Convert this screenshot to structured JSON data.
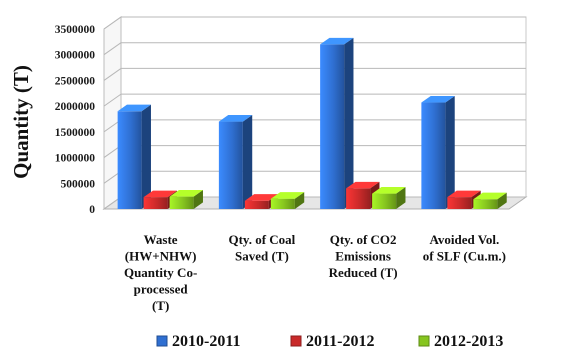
{
  "chart_data": {
    "type": "bar",
    "title": "",
    "xlabel": "",
    "ylabel": "Quantity (T)",
    "ylim": [
      0,
      3500000
    ],
    "yticks": [
      0,
      500000,
      1000000,
      1500000,
      2000000,
      2500000,
      3000000,
      3500000
    ],
    "ytick_labels": [
      "0",
      "500000",
      "1000000",
      "1500000",
      "2000000",
      "2500000",
      "3000000",
      "3500000"
    ],
    "grid": true,
    "legend_position": "bottom",
    "categories": [
      [
        "Waste",
        "(HW+NHW)",
        "Quantity Co-",
        "processed",
        "(T)"
      ],
      [
        "Qty. of Coal",
        "Saved (T)"
      ],
      [
        "Qty. of CO2",
        "Emissions",
        "Reduced (T)"
      ],
      [
        "Avoided Vol.",
        "of SLF (Cu.m.)"
      ]
    ],
    "series": [
      {
        "name": "2010-2011",
        "color": "#2f6fd1",
        "values": [
          1900000,
          1700000,
          3200000,
          2070000
        ]
      },
      {
        "name": "2011-2012",
        "color": "#c92a2a",
        "values": [
          230000,
          160000,
          400000,
          230000
        ]
      },
      {
        "name": "2012-2013",
        "color": "#86c51f",
        "values": [
          240000,
          200000,
          300000,
          190000
        ]
      }
    ]
  }
}
